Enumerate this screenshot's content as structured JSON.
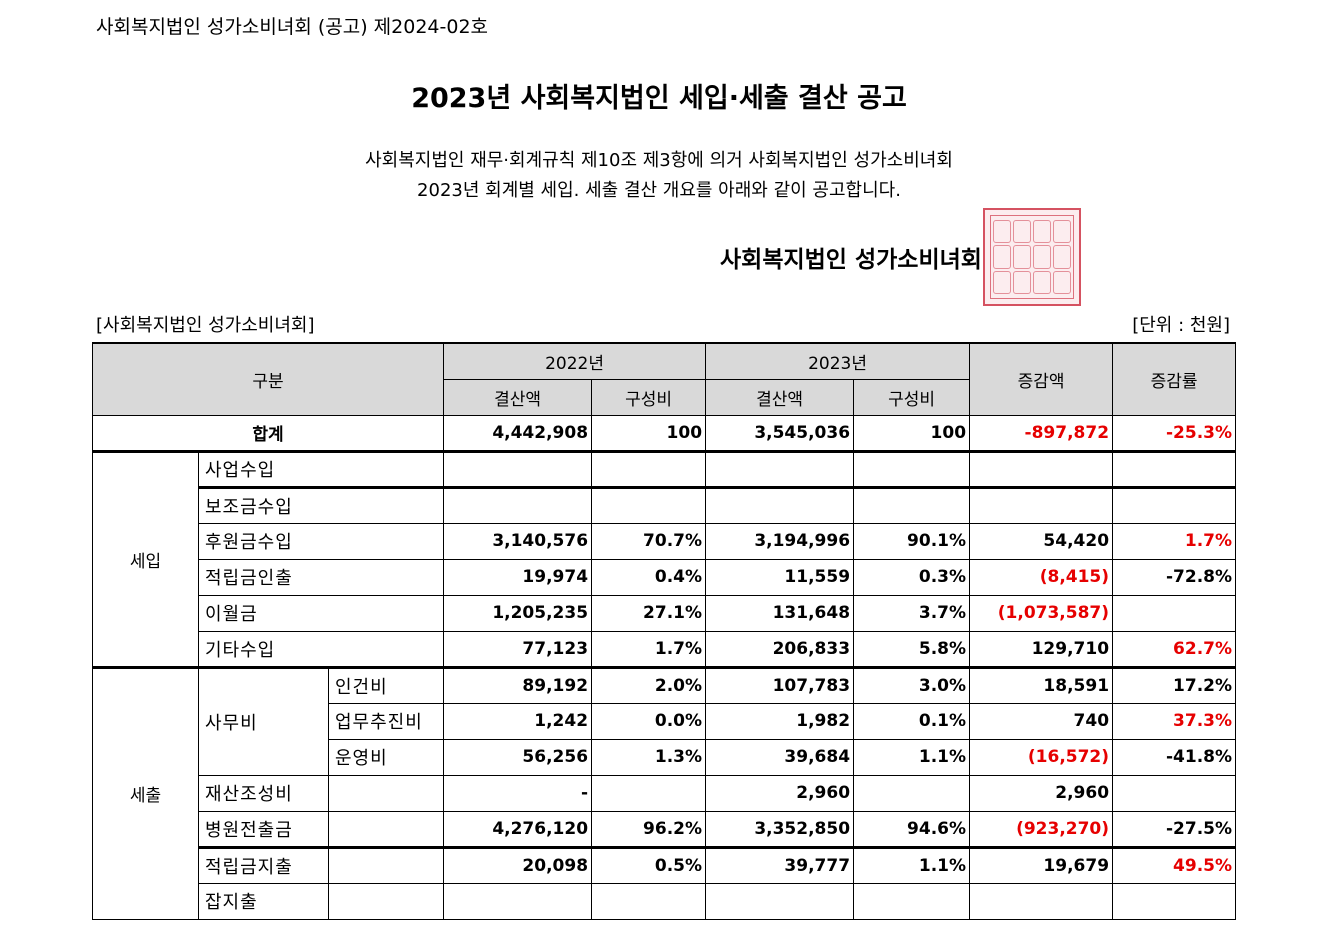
{
  "notice_no": "사회복지법인 성가소비녀회 (공고) 제2024-02호",
  "title": "2023년 사회복지법인 세입·세출 결산 공고",
  "body_line1": "사회복지법인 재무·회계규칙 제10조 제3항에 의거 사회복지법인 성가소비녀회",
  "body_line2": "2023년 회계별 세입. 세출 결산 개요를 아래와 같이 공고합니다.",
  "org_signature": "사회복지법인 성가소비녀회",
  "seal": "official-seal",
  "org_label": "[사회복지법인 성가소비녀회]",
  "unit_label": "[단위 : 천원]",
  "colors": {
    "negative": "#e60000",
    "header_bg": "#d9d9d9"
  },
  "header": {
    "category": "구분",
    "year1": "2022년",
    "year2": "2023년",
    "amount": "결산액",
    "ratio": "구성비",
    "change": "증감액",
    "change_rate": "증감률"
  },
  "total": {
    "label": "합계",
    "a2022": "4,442,908",
    "r2022": "100",
    "a2023": "3,545,036",
    "r2023": "100",
    "change": "-897,872",
    "rate": "-25.3%"
  },
  "revenue": {
    "label": "세입",
    "rows": [
      {
        "item": "사업수입",
        "a2022": "",
        "r2022": "",
        "a2023": "",
        "r2023": "",
        "change": "",
        "rate": ""
      },
      {
        "item": "보조금수입",
        "a2022": "",
        "r2022": "",
        "a2023": "",
        "r2023": "",
        "change": "",
        "rate": ""
      },
      {
        "item": "후원금수입",
        "a2022": "3,140,576",
        "r2022": "70.7%",
        "a2023": "3,194,996",
        "r2023": "90.1%",
        "change": "54,420",
        "rate": "1.7%"
      },
      {
        "item": "적립금인출",
        "a2022": "19,974",
        "r2022": "0.4%",
        "a2023": "11,559",
        "r2023": "0.3%",
        "change": "(8,415)",
        "rate": "-72.8%"
      },
      {
        "item": "이월금",
        "a2022": "1,205,235",
        "r2022": "27.1%",
        "a2023": "131,648",
        "r2023": "3.7%",
        "change": "(1,073,587)",
        "rate": ""
      },
      {
        "item": "기타수입",
        "a2022": "77,123",
        "r2022": "1.7%",
        "a2023": "206,833",
        "r2023": "5.8%",
        "change": "129,710",
        "rate": "62.7%"
      }
    ]
  },
  "expenditure": {
    "label": "세출",
    "office_label": "사무비",
    "office_rows": [
      {
        "item": "인건비",
        "a2022": "89,192",
        "r2022": "2.0%",
        "a2023": "107,783",
        "r2023": "3.0%",
        "change": "18,591",
        "rate": "17.2%"
      },
      {
        "item": "업무추진비",
        "a2022": "1,242",
        "r2022": "0.0%",
        "a2023": "1,982",
        "r2023": "0.1%",
        "change": "740",
        "rate": "37.3%"
      },
      {
        "item": "운영비",
        "a2022": "56,256",
        "r2022": "1.3%",
        "a2023": "39,684",
        "r2023": "1.1%",
        "change": "(16,572)",
        "rate": "-41.8%"
      }
    ],
    "rows": [
      {
        "item": "재산조성비",
        "a2022": "-",
        "r2022": "",
        "a2023": "2,960",
        "r2023": "",
        "change": "2,960",
        "rate": ""
      },
      {
        "item": "병원전출금",
        "a2022": "4,276,120",
        "r2022": "96.2%",
        "a2023": "3,352,850",
        "r2023": "94.6%",
        "change": "(923,270)",
        "rate": "-27.5%"
      },
      {
        "item": "적립금지출",
        "a2022": "20,098",
        "r2022": "0.5%",
        "a2023": "39,777",
        "r2023": "1.1%",
        "change": "19,679",
        "rate": "49.5%"
      },
      {
        "item": "잡지출",
        "a2022": "",
        "r2022": "",
        "a2023": "",
        "r2023": "",
        "change": "",
        "rate": ""
      }
    ]
  }
}
